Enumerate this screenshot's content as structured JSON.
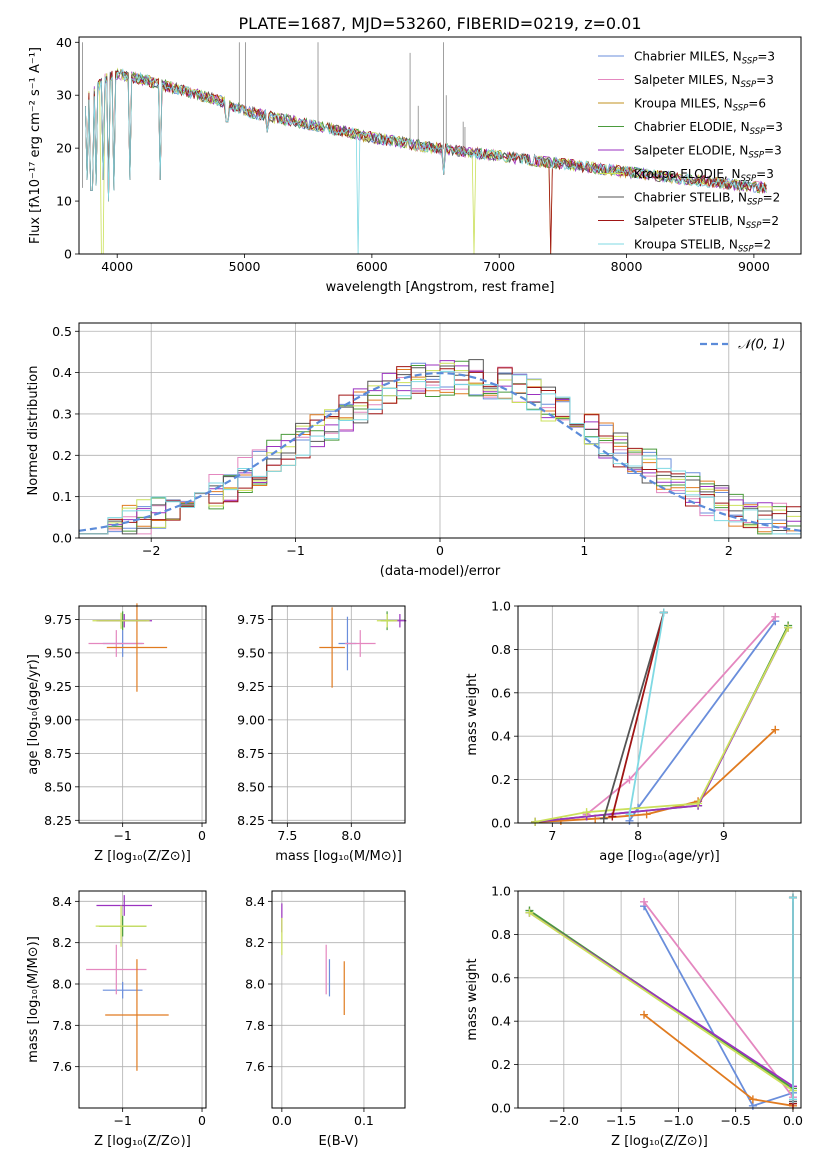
{
  "figure_title": "PLATE=1687, MJD=53260, FIBERID=0219, z=0.01",
  "colors": {
    "Chabrier MILES": "#6a8edb",
    "Salpeter MILES": "#e487bf",
    "Kroupa MILES": "#c1911f",
    "Chabrier ELODIE": "#4a9b3c",
    "Salpeter ELODIE": "#9b32c0",
    "Kroupa ELODIE": "#cbe05b",
    "Chabrier STELIB": "#555555",
    "Salpeter STELIB": "#a01515",
    "Kroupa STELIB": "#7fd9e3",
    "orange": "#e07b20",
    "normal": "#5b8bd9",
    "grid": "#b0b0b0"
  },
  "chart_data": [
    {
      "id": "spectrum",
      "type": "line",
      "xlabel": "wavelength [Angstrom, rest frame]",
      "ylabel": "Flux [fλ10⁻¹⁷ erg cm⁻² s⁻¹ A⁻¹]",
      "xlim": [
        3700,
        9370
      ],
      "ylim": [
        0,
        41
      ],
      "xticks": [
        4000,
        5000,
        6000,
        7000,
        8000,
        9000
      ],
      "yticks": [
        0,
        10,
        20,
        30,
        40
      ],
      "grid": false,
      "legend_position": "top-right",
      "legend": [
        {
          "name": "Chabrier MILES",
          "base": "Chabrier MILES, N",
          "sub": "SSP",
          "tail": "=3"
        },
        {
          "name": "Salpeter MILES",
          "base": "Salpeter MILES, N",
          "sub": "SSP",
          "tail": "=3"
        },
        {
          "name": "Kroupa MILES",
          "base": "Kroupa MILES, N",
          "sub": "SSP",
          "tail": "=6"
        },
        {
          "name": "Chabrier ELODIE",
          "base": "Chabrier ELODIE, N",
          "sub": "SSP",
          "tail": "=3"
        },
        {
          "name": "Salpeter ELODIE",
          "base": "Salpeter ELODIE, N",
          "sub": "SSP",
          "tail": "=3"
        },
        {
          "name": "Kroupa ELODIE",
          "base": "Kroupa ELODIE, N",
          "sub": "SSP",
          "tail": "=3"
        },
        {
          "name": "Chabrier STELIB",
          "base": "Chabrier STELIB, N",
          "sub": "SSP",
          "tail": "=2"
        },
        {
          "name": "Salpeter STELIB",
          "base": "Salpeter STELIB, N",
          "sub": "SSP",
          "tail": "=2"
        },
        {
          "name": "Kroupa STELIB",
          "base": "Kroupa STELIB, N",
          "sub": "SSP",
          "tail": "=2"
        }
      ],
      "continuum": [
        [
          3750,
          29
        ],
        [
          3900,
          33
        ],
        [
          4000,
          34
        ],
        [
          4200,
          33
        ],
        [
          4500,
          31
        ],
        [
          4800,
          29
        ],
        [
          5000,
          27
        ],
        [
          5500,
          24.5
        ],
        [
          6000,
          22
        ],
        [
          6500,
          20
        ],
        [
          7000,
          18.5
        ],
        [
          7500,
          17
        ],
        [
          8000,
          15.5
        ],
        [
          8500,
          14
        ],
        [
          9100,
          12.5
        ]
      ],
      "absorption_dips": [
        [
          3760,
          14
        ],
        [
          3800,
          12
        ],
        [
          3835,
          13
        ],
        [
          3890,
          14
        ],
        [
          3934,
          10
        ],
        [
          3970,
          12
        ],
        [
          4102,
          14
        ],
        [
          4340,
          14
        ],
        [
          4861,
          25
        ],
        [
          5175,
          23
        ],
        [
          5890,
          0
        ],
        [
          6563,
          15
        ],
        [
          6800,
          0
        ],
        [
          7400,
          0
        ]
      ],
      "emission_spikes": [
        [
          3727,
          40
        ],
        [
          4959,
          40
        ],
        [
          5007,
          40
        ],
        [
          5577,
          40
        ],
        [
          6300,
          38
        ],
        [
          6364,
          28
        ],
        [
          6563,
          40
        ],
        [
          6584,
          30
        ],
        [
          6717,
          25
        ],
        [
          6731,
          24
        ]
      ]
    },
    {
      "id": "residuals",
      "type": "histogram",
      "xlabel": "(data-model)/error",
      "ylabel": "Normed distribution",
      "xlim": [
        -2.5,
        2.5
      ],
      "ylim": [
        0,
        0.52
      ],
      "xticks": [
        -2,
        -1,
        0,
        1,
        2
      ],
      "yticks": [
        0.0,
        0.1,
        0.2,
        0.3,
        0.4,
        0.5
      ],
      "grid": true,
      "bin_width": 0.1,
      "bin_start": -2.5,
      "legend": "𝒩(0, 1)",
      "normal_curve": {
        "mean": 0,
        "sd": 1
      }
    },
    {
      "id": "z-age",
      "type": "scatter",
      "xlabel": "Z [log₁₀(Z/Z⊙)]",
      "ylabel": "age  [log₁₀(age/yr)]",
      "xlim": [
        -1.55,
        0.05
      ],
      "ylim": [
        8.23,
        9.85
      ],
      "xticks": [
        -1,
        0
      ],
      "yticks": [
        8.25,
        8.5,
        8.75,
        9.0,
        9.25,
        9.5,
        9.75
      ],
      "grid": true,
      "points": [
        {
          "x": -1.0,
          "y": 9.57,
          "xerr": 0.25,
          "yerr": 0.1,
          "color": "Chabrier MILES"
        },
        {
          "x": -1.08,
          "y": 9.57,
          "xerr": 0.35,
          "yerr": 0.1,
          "color": "Salpeter MILES"
        },
        {
          "x": -0.82,
          "y": 9.54,
          "xerr": 0.38,
          "yerr": 0.33,
          "color": "orange"
        },
        {
          "x": -1.0,
          "y": 9.74,
          "xerr": 0.3,
          "yerr": 0.07,
          "color": "Chabrier ELODIE"
        },
        {
          "x": -0.98,
          "y": 9.74,
          "xerr": 0.35,
          "yerr": 0.05,
          "color": "Salpeter ELODIE"
        },
        {
          "x": -1.02,
          "y": 9.74,
          "xerr": 0.36,
          "yerr": 0.06,
          "color": "Kroupa ELODIE"
        }
      ]
    },
    {
      "id": "mass-age",
      "type": "scatter",
      "xlabel": "mass [log₁₀(M/M⊙)]",
      "ylabel": "",
      "xlim": [
        7.38,
        8.42
      ],
      "ylim": [
        8.23,
        9.85
      ],
      "xticks": [
        7.5,
        8.0
      ],
      "yticks": [
        8.25,
        8.5,
        8.75,
        9.0,
        9.25,
        9.5,
        9.75
      ],
      "grid": true,
      "points": [
        {
          "x": 7.97,
          "y": 9.57,
          "xerr": 0.07,
          "yerr": 0.2,
          "color": "Chabrier MILES"
        },
        {
          "x": 8.07,
          "y": 9.57,
          "xerr": 0.12,
          "yerr": 0.1,
          "color": "Salpeter MILES"
        },
        {
          "x": 7.85,
          "y": 9.54,
          "xerr": 0.1,
          "yerr": 0.3,
          "color": "orange"
        },
        {
          "x": 8.28,
          "y": 9.74,
          "xerr": 0.05,
          "yerr": 0.07,
          "color": "Chabrier ELODIE"
        },
        {
          "x": 8.38,
          "y": 9.74,
          "xerr": 0.05,
          "yerr": 0.05,
          "color": "Salpeter ELODIE"
        },
        {
          "x": 8.28,
          "y": 9.74,
          "xerr": 0.08,
          "yerr": 0.05,
          "color": "Kroupa ELODIE"
        }
      ]
    },
    {
      "id": "age-weight",
      "type": "line",
      "xlabel": "age  [log₁₀(age/yr)]",
      "ylabel": "mass weight",
      "xlim": [
        6.6,
        9.9
      ],
      "ylim": [
        0,
        1.0
      ],
      "xticks": [
        7,
        8,
        9
      ],
      "yticks": [
        0.0,
        0.2,
        0.4,
        0.6,
        0.8,
        1.0
      ],
      "grid": true,
      "series": [
        {
          "color": "Chabrier MILES",
          "x": [
            7.9,
            8.0,
            9.6
          ],
          "y": [
            0.01,
            0.07,
            0.93
          ]
        },
        {
          "color": "Salpeter MILES",
          "x": [
            7.4,
            7.9,
            9.6
          ],
          "y": [
            0.04,
            0.2,
            0.95
          ]
        },
        {
          "color": "orange",
          "x": [
            6.8,
            7.1,
            7.5,
            8.1,
            8.7,
            9.6
          ],
          "y": [
            0.005,
            0.01,
            0.02,
            0.04,
            0.1,
            0.43
          ]
        },
        {
          "color": "Chabrier ELODIE",
          "x": [
            6.8,
            7.4,
            8.7,
            9.75
          ],
          "y": [
            0.005,
            0.03,
            0.08,
            0.91
          ]
        },
        {
          "color": "Salpeter ELODIE",
          "x": [
            6.8,
            7.4,
            8.7,
            9.75
          ],
          "y": [
            0.005,
            0.03,
            0.08,
            0.9
          ]
        },
        {
          "color": "Kroupa ELODIE",
          "x": [
            6.8,
            7.4,
            8.7,
            9.75
          ],
          "y": [
            0.005,
            0.05,
            0.09,
            0.9
          ]
        },
        {
          "color": "Chabrier STELIB",
          "x": [
            7.6,
            8.3
          ],
          "y": [
            0.02,
            0.97
          ]
        },
        {
          "color": "Salpeter STELIB",
          "x": [
            7.7,
            8.3
          ],
          "y": [
            0.03,
            0.97
          ]
        },
        {
          "color": "Kroupa STELIB",
          "x": [
            7.9,
            8.3
          ],
          "y": [
            0.04,
            0.97
          ]
        }
      ]
    },
    {
      "id": "z-mass",
      "type": "scatter",
      "xlabel": "Z [log₁₀(Z/Z⊙)]",
      "ylabel": "mass [log₁₀(M/M⊙)]",
      "xlim": [
        -1.55,
        0.05
      ],
      "ylim": [
        7.4,
        8.45
      ],
      "xticks": [
        -1,
        0
      ],
      "yticks": [
        7.6,
        7.8,
        8.0,
        8.2,
        8.4
      ],
      "grid": true,
      "points": [
        {
          "x": -1.0,
          "y": 7.97,
          "xerr": 0.25,
          "yerr": 0.04,
          "color": "Chabrier MILES"
        },
        {
          "x": -1.08,
          "y": 8.07,
          "xerr": 0.38,
          "yerr": 0.12,
          "color": "Salpeter MILES"
        },
        {
          "x": -0.82,
          "y": 7.85,
          "xerr": 0.4,
          "yerr": 0.27,
          "color": "orange"
        },
        {
          "x": -1.0,
          "y": 8.28,
          "xerr": 0.3,
          "yerr": 0.05,
          "color": "Chabrier ELODIE"
        },
        {
          "x": -0.98,
          "y": 8.38,
          "xerr": 0.35,
          "yerr": 0.05,
          "color": "Salpeter ELODIE"
        },
        {
          "x": -1.02,
          "y": 8.28,
          "xerr": 0.32,
          "yerr": 0.1,
          "color": "Kroupa ELODIE"
        }
      ]
    },
    {
      "id": "ebv-mass",
      "type": "scatter",
      "xlabel": "E(B-V)",
      "ylabel": "",
      "xlim": [
        -0.012,
        0.15
      ],
      "ylim": [
        7.4,
        8.45
      ],
      "xticks": [
        0.0,
        0.1
      ],
      "yticks": [
        7.6,
        7.8,
        8.0,
        8.2,
        8.4
      ],
      "grid": true,
      "points": [
        {
          "x": 0.058,
          "y": 8.03,
          "xerr": 0,
          "yerr": 0.09,
          "color": "Chabrier MILES"
        },
        {
          "x": 0.054,
          "y": 8.07,
          "xerr": 0,
          "yerr": 0.12,
          "color": "Salpeter MILES"
        },
        {
          "x": 0.076,
          "y": 7.98,
          "xerr": 0,
          "yerr": 0.13,
          "color": "orange"
        },
        {
          "x": 0.0,
          "y": 8.32,
          "xerr": 0,
          "yerr": 0.07,
          "color": "Salpeter ELODIE"
        },
        {
          "x": 0.0,
          "y": 8.23,
          "xerr": 0,
          "yerr": 0.09,
          "color": "Kroupa ELODIE"
        }
      ]
    },
    {
      "id": "z-weight",
      "type": "line",
      "xlabel": "Z [log₁₀(Z/Z⊙)]",
      "ylabel": "mass weight",
      "xlim": [
        -2.4,
        0.07
      ],
      "ylim": [
        0,
        1.0
      ],
      "xticks": [
        -2.0,
        -1.5,
        -1.0,
        -0.5,
        0.0
      ],
      "yticks": [
        0.0,
        0.2,
        0.4,
        0.6,
        0.8,
        1.0
      ],
      "grid": true,
      "series": [
        {
          "color": "Chabrier MILES",
          "x": [
            -1.3,
            -0.35,
            0.0
          ],
          "y": [
            0.93,
            0.01,
            0.07
          ]
        },
        {
          "color": "Salpeter MILES",
          "x": [
            -1.3,
            0.0
          ],
          "y": [
            0.95,
            0.05
          ]
        },
        {
          "color": "orange",
          "x": [
            -1.3,
            -0.35,
            0.0
          ],
          "y": [
            0.43,
            0.04,
            0.01
          ]
        },
        {
          "color": "Chabrier ELODIE",
          "x": [
            -2.3,
            0.0
          ],
          "y": [
            0.91,
            0.09
          ]
        },
        {
          "color": "Salpeter ELODIE",
          "x": [
            -2.3,
            0.0
          ],
          "y": [
            0.9,
            0.1
          ]
        },
        {
          "color": "Kroupa ELODIE",
          "x": [
            -2.3,
            0.0
          ],
          "y": [
            0.9,
            0.08
          ]
        },
        {
          "color": "Chabrier STELIB",
          "x": [
            0.0,
            0.0
          ],
          "y": [
            0.97,
            0.03
          ]
        },
        {
          "color": "Salpeter STELIB",
          "x": [
            0.0,
            0.0
          ],
          "y": [
            0.97,
            0.02
          ]
        },
        {
          "color": "Kroupa STELIB",
          "x": [
            0.0,
            0.0
          ],
          "y": [
            0.97,
            0.04
          ]
        }
      ]
    }
  ]
}
